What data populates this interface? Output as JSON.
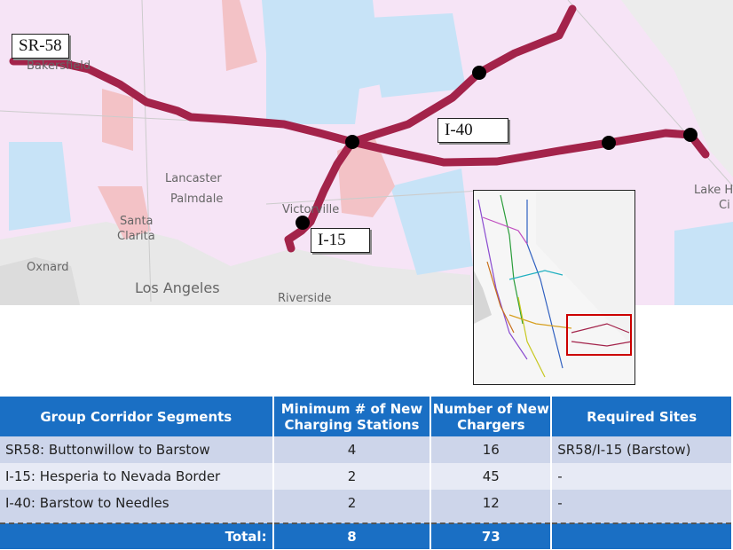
{
  "map": {
    "route_color": "#a3234a",
    "route_labels": [
      "SR-58",
      "I-40",
      "I-15"
    ],
    "cities": [
      "Bakersfield",
      "Lancaster",
      "Palmdale",
      "Santa",
      "Clarita",
      "Victorville",
      "Oxnard",
      "Los Angeles",
      "Riverside",
      "Lake H",
      "Ci"
    ]
  },
  "table": {
    "headers": [
      "Group Corridor Segments",
      "Minimum # of New Charging Stations",
      "Number of New Chargers",
      "Required Sites"
    ],
    "rows": [
      {
        "segment": "SR58: Buttonwillow to Barstow",
        "stations": "4",
        "chargers": "16",
        "sites": "SR58/I-15 (Barstow)"
      },
      {
        "segment": "I-15: Hesperia to Nevada Border",
        "stations": "2",
        "chargers": "45",
        "sites": "-"
      },
      {
        "segment": "I-40: Barstow to Needles",
        "stations": "2",
        "chargers": "12",
        "sites": "-"
      }
    ],
    "total": {
      "label": "Total:",
      "stations": "8",
      "chargers": "73"
    }
  }
}
